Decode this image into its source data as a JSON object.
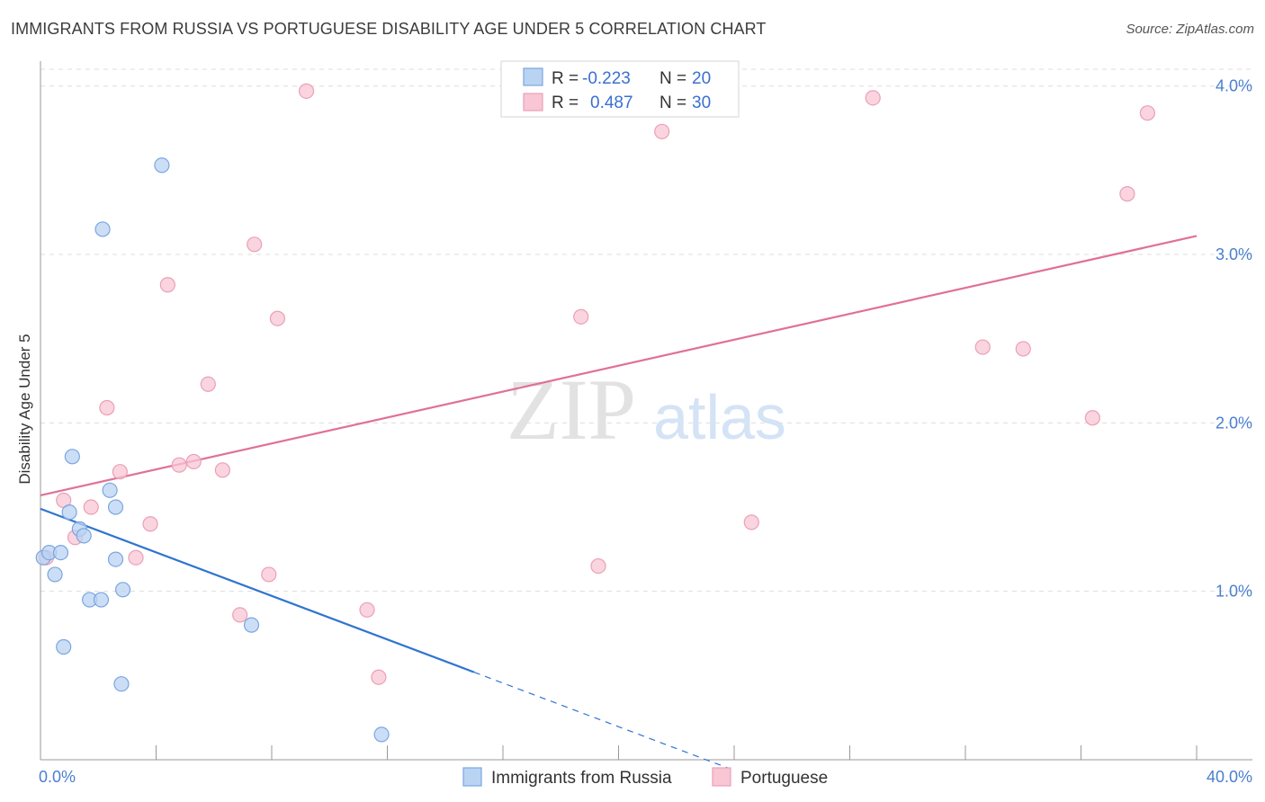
{
  "header": {
    "title": "IMMIGRANTS FROM RUSSIA VS PORTUGUESE DISABILITY AGE UNDER 5 CORRELATION CHART",
    "source": "Source: ZipAtlas.com"
  },
  "watermark": {
    "zip": "ZIP",
    "atlas": "atlas"
  },
  "colors": {
    "blue_fill": "#b9d3f3",
    "blue_stroke": "#7aa6df",
    "blue_line": "#2f74d0",
    "pink_fill": "#f8c6d4",
    "pink_stroke": "#eaa0b8",
    "pink_line": "#e07098",
    "grid": "#dddddd",
    "tick_label": "#4a7fd0"
  },
  "legend": {
    "rows": [
      {
        "r_label": "R =",
        "r_value": "-0.223",
        "n_label": "N =",
        "n_value": "20"
      },
      {
        "r_label": "R =",
        "r_value": "0.487",
        "n_label": "N =",
        "n_value": "30"
      }
    ]
  },
  "bottom_legend": {
    "series1": "Immigrants from Russia",
    "series2": "Portuguese"
  },
  "chart_data": {
    "type": "scatter",
    "title": "IMMIGRANTS FROM RUSSIA VS PORTUGUESE DISABILITY AGE UNDER 5 CORRELATION CHART",
    "xlabel": "",
    "ylabel": "Disability Age Under 5",
    "xlim": [
      0,
      40
    ],
    "ylim": [
      0,
      4.1
    ],
    "x_tick_labels": [
      "0.0%",
      "40.0%"
    ],
    "y_ticks": [
      1.0,
      2.0,
      3.0,
      4.0
    ],
    "y_tick_labels": [
      "1.0%",
      "2.0%",
      "3.0%",
      "4.0%"
    ],
    "grid": true,
    "series": [
      {
        "name": "Immigrants from Russia",
        "color": "#b9d3f3",
        "r": -0.223,
        "n": 20,
        "points": [
          [
            0.1,
            1.2
          ],
          [
            0.3,
            1.23
          ],
          [
            0.5,
            1.1
          ],
          [
            0.7,
            1.23
          ],
          [
            0.8,
            0.67
          ],
          [
            1.1,
            1.8
          ],
          [
            1.0,
            1.47
          ],
          [
            1.35,
            1.37
          ],
          [
            1.5,
            1.33
          ],
          [
            1.7,
            0.95
          ],
          [
            2.1,
            0.95
          ],
          [
            2.15,
            3.15
          ],
          [
            2.4,
            1.6
          ],
          [
            2.6,
            1.19
          ],
          [
            2.6,
            1.5
          ],
          [
            2.8,
            0.45
          ],
          [
            2.85,
            1.01
          ],
          [
            4.2,
            3.53
          ],
          [
            7.3,
            0.8
          ],
          [
            11.8,
            0.15
          ]
        ],
        "trend": {
          "x0": 0,
          "y0": 1.49,
          "x1": 15,
          "y1": 0.52,
          "dash_to_x": 23.8,
          "dash_to_y": -0.05
        }
      },
      {
        "name": "Portuguese",
        "color": "#f8c6d4",
        "r": 0.487,
        "n": 30,
        "points": [
          [
            0.2,
            1.2
          ],
          [
            0.8,
            1.54
          ],
          [
            1.2,
            1.32
          ],
          [
            2.3,
            2.09
          ],
          [
            1.75,
            1.5
          ],
          [
            2.75,
            1.71
          ],
          [
            3.3,
            1.2
          ],
          [
            3.8,
            1.4
          ],
          [
            4.4,
            2.82
          ],
          [
            4.8,
            1.75
          ],
          [
            5.3,
            1.77
          ],
          [
            5.8,
            2.23
          ],
          [
            6.3,
            1.72
          ],
          [
            6.9,
            0.86
          ],
          [
            7.4,
            3.06
          ],
          [
            7.9,
            1.1
          ],
          [
            8.2,
            2.62
          ],
          [
            9.2,
            3.97
          ],
          [
            11.3,
            0.89
          ],
          [
            11.7,
            0.49
          ],
          [
            18.7,
            2.63
          ],
          [
            19.3,
            1.15
          ],
          [
            21.5,
            3.73
          ],
          [
            24.6,
            1.41
          ],
          [
            28.8,
            3.93
          ],
          [
            32.6,
            2.45
          ],
          [
            34.0,
            2.44
          ],
          [
            36.4,
            2.03
          ],
          [
            37.6,
            3.36
          ],
          [
            38.3,
            3.84
          ]
        ],
        "trend": {
          "x0": 0,
          "y0": 1.57,
          "x1": 40,
          "y1": 3.11
        }
      }
    ]
  }
}
